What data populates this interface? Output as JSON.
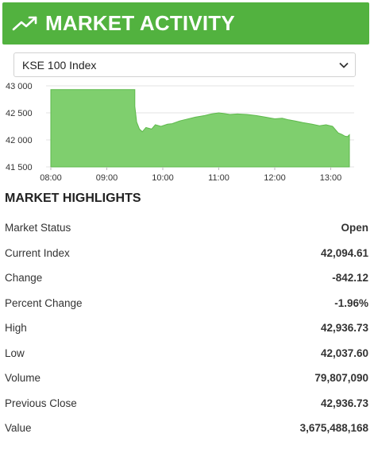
{
  "header": {
    "title": "MARKET ACTIVITY",
    "icon": "trending-up-icon",
    "bg_color": "#52b23f"
  },
  "index_select": {
    "selected": "KSE 100 Index"
  },
  "chart_data": {
    "type": "area",
    "color": "#7fcf6e",
    "line_color": "#5eb94c",
    "y_ticks": [
      "43 000",
      "42 500",
      "42 000",
      "41 500"
    ],
    "x_ticks": [
      "08:00",
      "09:00",
      "10:00",
      "11:00",
      "12:00",
      "13:00"
    ],
    "ylim": [
      41500,
      43000
    ],
    "xlim": [
      "08:00",
      "13:20"
    ],
    "x": [
      "08:00",
      "09:30",
      "09:30",
      "09:32",
      "09:35",
      "09:38",
      "09:42",
      "09:48",
      "09:52",
      "09:58",
      "10:05",
      "10:10",
      "10:18",
      "10:25",
      "10:35",
      "10:45",
      "10:52",
      "11:00",
      "11:05",
      "11:12",
      "11:20",
      "11:30",
      "11:40",
      "11:50",
      "12:00",
      "12:08",
      "12:15",
      "12:22",
      "12:30",
      "12:40",
      "12:48",
      "12:55",
      "13:02",
      "13:08",
      "13:12",
      "13:15",
      "13:18",
      "13:20"
    ],
    "values": [
      42930,
      42930,
      42620,
      42330,
      42200,
      42150,
      42230,
      42200,
      42280,
      42250,
      42290,
      42300,
      42350,
      42380,
      42420,
      42450,
      42480,
      42500,
      42490,
      42470,
      42480,
      42470,
      42450,
      42420,
      42390,
      42400,
      42370,
      42350,
      42320,
      42290,
      42260,
      42280,
      42250,
      42130,
      42100,
      42070,
      42060,
      42094.61
    ]
  },
  "highlights": {
    "title": "MARKET HIGHLIGHTS",
    "rows": [
      {
        "label": "Market Status",
        "value": "Open"
      },
      {
        "label": "Current Index",
        "value": "42,094.61"
      },
      {
        "label": "Change",
        "value": "-842.12"
      },
      {
        "label": "Percent Change",
        "value": "-1.96%"
      },
      {
        "label": "High",
        "value": "42,936.73"
      },
      {
        "label": "Low",
        "value": "42,037.60"
      },
      {
        "label": "Volume",
        "value": "79,807,090"
      },
      {
        "label": "Previous Close",
        "value": "42,936.73"
      },
      {
        "label": "Value",
        "value": "3,675,488,168"
      }
    ]
  }
}
